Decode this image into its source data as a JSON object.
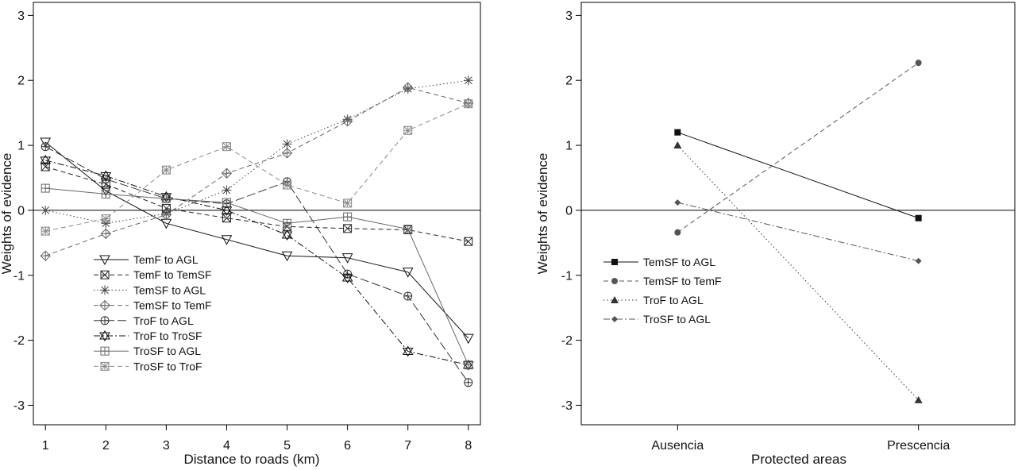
{
  "chart_data": [
    {
      "type": "line",
      "title": "",
      "xlabel": "Distance to roads (km)",
      "ylabel": "Weights of evidence",
      "categories": [
        "1",
        "2",
        "3",
        "4",
        "5",
        "6",
        "7",
        "8"
      ],
      "xlim": [
        0.8,
        8.2
      ],
      "ylim": [
        -3.3,
        3.2
      ],
      "yticks": [
        "-3",
        "-2",
        "-1",
        "0",
        "1",
        "2",
        "3"
      ],
      "reference_line_y": 0,
      "legend_position": "bottom-left",
      "series": [
        {
          "name": "TemF to AGL",
          "marker": "triangle-down",
          "dash": "solid",
          "color": "#111111",
          "values": [
            1.05,
            0.3,
            -0.2,
            -0.45,
            -0.7,
            -0.73,
            -0.95,
            -1.97
          ]
        },
        {
          "name": "TemF to TemSF",
          "marker": "box-x",
          "dash": "dashed",
          "color": "#222222",
          "values": [
            0.67,
            0.4,
            0.03,
            -0.12,
            -0.25,
            -0.28,
            -0.3,
            -0.48
          ]
        },
        {
          "name": "TemSF to AGL",
          "marker": "asterisk",
          "dash": "dotted",
          "color": "#444444",
          "values": [
            0.0,
            -0.2,
            -0.05,
            0.31,
            1.02,
            1.4,
            1.87,
            2.0
          ]
        },
        {
          "name": "TemSF to TemF",
          "marker": "diamond-plus",
          "dash": "dashed",
          "color": "#666666",
          "values": [
            -0.7,
            -0.36,
            -0.07,
            0.57,
            0.88,
            1.37,
            1.89,
            1.65
          ]
        },
        {
          "name": "TroF to AGL",
          "marker": "circle-plus",
          "dash": "longdash",
          "color": "#333333",
          "values": [
            0.98,
            0.48,
            0.18,
            0.1,
            0.44,
            -0.98,
            -1.32,
            -2.65
          ]
        },
        {
          "name": "TroF to TroSF",
          "marker": "star",
          "dash": "dashdot",
          "color": "#111111",
          "values": [
            0.77,
            0.53,
            0.21,
            0.0,
            -0.38,
            -1.04,
            -2.17,
            -2.38
          ]
        },
        {
          "name": "TroSF to AGL",
          "marker": "box-plus",
          "dash": "solid",
          "color": "#666666",
          "values": [
            0.34,
            0.25,
            0.18,
            0.12,
            -0.2,
            -0.1,
            -0.29,
            -2.38
          ]
        },
        {
          "name": "TroSF to TroF",
          "marker": "box-asterisk",
          "dash": "dashed",
          "color": "#888888",
          "values": [
            -0.32,
            -0.13,
            0.62,
            0.98,
            0.39,
            0.11,
            1.23,
            1.64
          ]
        }
      ]
    },
    {
      "type": "line",
      "title": "",
      "xlabel": "Protected areas",
      "ylabel": "Weights of evidence",
      "categories": [
        "Ausencia",
        "Prescencia"
      ],
      "xlim": [
        0.6,
        2.4
      ],
      "ylim": [
        -3.3,
        3.2
      ],
      "yticks": [
        "-3",
        "-2",
        "-1",
        "0",
        "1",
        "2",
        "3"
      ],
      "reference_line_y": 0,
      "legend_position": "center-left",
      "series": [
        {
          "name": "TemSF to AGL",
          "marker": "square-filled",
          "dash": "solid",
          "color": "#111111",
          "values": [
            1.2,
            -0.12
          ]
        },
        {
          "name": "TemSF to TemF",
          "marker": "circle-filled",
          "dash": "dashed",
          "color": "#555555",
          "values": [
            -0.34,
            2.27
          ]
        },
        {
          "name": "TroF to AGL",
          "marker": "triangle-filled",
          "dash": "dotted",
          "color": "#333333",
          "values": [
            1.0,
            -2.92
          ]
        },
        {
          "name": "TroSF to AGL",
          "marker": "diamond-filled",
          "dash": "dashdot",
          "color": "#555555",
          "values": [
            0.12,
            -0.78
          ]
        }
      ]
    }
  ]
}
